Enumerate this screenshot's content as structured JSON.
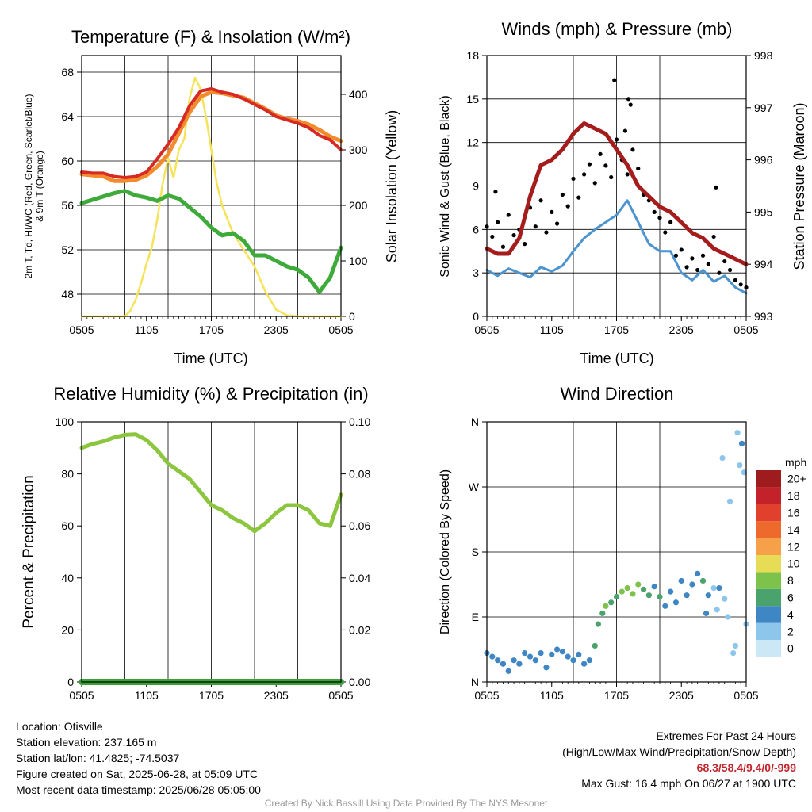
{
  "panels": {
    "temp": {
      "title": "Temperature (F) & Insolation (W/m²)",
      "xlabel": "Time (UTC)",
      "ylabel_left_line1": "2m T, Td, HI/WC (Red, Green, Scarlet/Blue)",
      "ylabel_left_line2": "& 9m T (Orange)",
      "ylabel_right": "Solar Insolation (Yellow)",
      "x_ticks": [
        "0505",
        "1105",
        "1705",
        "2305",
        "0505"
      ],
      "y_ticks_left": [
        "48",
        "52",
        "56",
        "60",
        "64",
        "68"
      ],
      "y_ticks_right": [
        "0",
        "100",
        "200",
        "300",
        "400"
      ]
    },
    "wind": {
      "title": "Winds (mph) & Pressure (mb)",
      "xlabel": "Time (UTC)",
      "ylabel_left": "Sonic Wind & Gust (Blue, Black)",
      "ylabel_right": "Station Pressure (Maroon)",
      "x_ticks": [
        "0505",
        "1105",
        "1705",
        "2305",
        "0505"
      ],
      "y_ticks_left": [
        "0",
        "3",
        "6",
        "9",
        "12",
        "15",
        "18"
      ],
      "y_ticks_right": [
        "993",
        "994",
        "995",
        "996",
        "997",
        "998"
      ]
    },
    "rh": {
      "title": "Relative Humidity (%) & Precipitation (in)",
      "ylabel_left": "Percent & Precipitation",
      "x_ticks": [
        "0505",
        "1105",
        "1705",
        "2305",
        "0505"
      ],
      "y_ticks_left": [
        "0",
        "20",
        "40",
        "60",
        "80",
        "100"
      ],
      "y_ticks_right": [
        "0.00",
        "0.02",
        "0.04",
        "0.06",
        "0.08",
        "0.10"
      ]
    },
    "dir": {
      "title": "Wind Direction",
      "ylabel_left": "Direction (Colored By Speed)",
      "x_ticks": [
        "0505",
        "1105",
        "1705",
        "2305",
        "0505"
      ],
      "y_ticks_left": [
        "N",
        "E",
        "S",
        "W",
        "N"
      ],
      "legend_title": "mph",
      "legend_labels": [
        "0",
        "2",
        "4",
        "6",
        "8",
        "10",
        "12",
        "14",
        "16",
        "18",
        "20+"
      ],
      "legend_colors": [
        "#cce8f7",
        "#8cc6ea",
        "#3f86c4",
        "#4aa36c",
        "#7dc24a",
        "#e6dc55",
        "#f6a14a",
        "#ee6a2c",
        "#e0402c",
        "#c3222a",
        "#9e1b1e"
      ]
    }
  },
  "colors": {
    "temp": "#d62a22",
    "ninem": "#f28a2e",
    "dew": "#3daa3a",
    "solar": "#f5e35a",
    "wind": "#4b94cf",
    "gust": "#000000",
    "pressure": "#a51c1c",
    "rh": "#8cc63f",
    "precip": "#3aa13a"
  },
  "chart_data": [
    {
      "type": "line",
      "panel": "temp",
      "x_unit": "hours from 0505 UTC 06/27",
      "xlim": [
        0,
        24
      ],
      "ylim_left": [
        46,
        69.5
      ],
      "ylim_right": [
        0,
        470
      ],
      "series": [
        {
          "key": "temp",
          "x": [
            0,
            1,
            2,
            3,
            4,
            5,
            6,
            7,
            8,
            9,
            10,
            11,
            12,
            13,
            14,
            15,
            16,
            17,
            18,
            19,
            20,
            21,
            22,
            23,
            24
          ],
          "y": [
            59,
            58.9,
            58.9,
            58.6,
            58.5,
            58.6,
            59,
            60.2,
            61.5,
            63,
            65,
            66.3,
            66.5,
            66.2,
            66,
            65.6,
            65.1,
            64.6,
            64,
            63.7,
            63.4,
            63,
            62.3,
            61.9,
            61
          ]
        },
        {
          "key": "ninem",
          "x": [
            0,
            1,
            2,
            3,
            4,
            5,
            6,
            7,
            8,
            9,
            10,
            11,
            12,
            13,
            14,
            15,
            16,
            17,
            18,
            19,
            20,
            21,
            22,
            23,
            24
          ],
          "y": [
            58.8,
            58.7,
            58.6,
            58.2,
            58.2,
            58.3,
            58.7,
            59.5,
            60.6,
            62.5,
            64.4,
            65.8,
            66.2,
            66.1,
            65.9,
            65.7,
            65.2,
            64.7,
            64.1,
            63.8,
            63.6,
            63.3,
            62.8,
            62.2,
            61.8
          ]
        },
        {
          "key": "dew",
          "x": [
            0,
            1,
            2,
            3,
            4,
            5,
            6,
            7,
            8,
            9,
            10,
            11,
            12,
            13,
            14,
            15,
            16,
            17,
            18,
            19,
            20,
            21,
            22,
            23,
            24
          ],
          "y": [
            56.2,
            56.5,
            56.8,
            57.1,
            57.3,
            56.9,
            56.7,
            56.4,
            56.9,
            56.6,
            55.8,
            55,
            54,
            53.3,
            53.5,
            52.8,
            51.5,
            51.5,
            51,
            50.5,
            50.2,
            49.5,
            48.2,
            49.5,
            52.2
          ]
        },
        {
          "key": "solar",
          "x": [
            0,
            1,
            2,
            3,
            4,
            4.5,
            5,
            5.5,
            6,
            6.5,
            7,
            7.5,
            8,
            8.5,
            9,
            9.5,
            10,
            10.5,
            11,
            11.5,
            12,
            12.5,
            13,
            13.5,
            14,
            15,
            16,
            17,
            18,
            19,
            20,
            24
          ],
          "y": [
            0,
            0,
            0,
            0,
            0,
            10,
            30,
            60,
            95,
            125,
            175,
            240,
            285,
            250,
            300,
            320,
            395,
            430,
            410,
            360,
            300,
            240,
            200,
            175,
            150,
            120,
            90,
            45,
            12,
            2,
            0,
            0
          ]
        }
      ]
    },
    {
      "type": "line",
      "panel": "wind",
      "x_unit": "hours from 0505 UTC 06/27",
      "xlim": [
        0,
        24
      ],
      "ylim_left": [
        0,
        18
      ],
      "ylim_right": [
        993,
        998
      ],
      "series": [
        {
          "key": "wind",
          "x": [
            0,
            1,
            2,
            3,
            4,
            5,
            6,
            7,
            8,
            9,
            10,
            11,
            12,
            13,
            14,
            15,
            16,
            17,
            18,
            19,
            20,
            21,
            22,
            23,
            24
          ],
          "y": [
            3.2,
            2.8,
            3.3,
            3,
            2.7,
            3.4,
            3.1,
            3.5,
            4.5,
            5.4,
            6,
            6.5,
            7,
            8,
            6.5,
            5,
            4.5,
            4.5,
            3,
            2.5,
            3.2,
            2.4,
            2.8,
            2,
            1.6
          ]
        },
        {
          "key": "pressure",
          "x": [
            0,
            1,
            2,
            3,
            4,
            5,
            6,
            7,
            8,
            9,
            10,
            11,
            12,
            13,
            14,
            15,
            16,
            17,
            18,
            19,
            20,
            21,
            22,
            23,
            24
          ],
          "y": [
            994.3,
            994.2,
            994.2,
            994.5,
            995.3,
            995.9,
            996,
            996.2,
            996.5,
            996.7,
            996.6,
            996.5,
            996.2,
            995.9,
            995.5,
            995.3,
            995.1,
            995,
            994.8,
            994.6,
            994.5,
            994.3,
            994.2,
            994.1,
            994
          ]
        }
      ],
      "gust_points": [
        {
          "x": 0,
          "y": 6.2
        },
        {
          "x": 0.5,
          "y": 5.5
        },
        {
          "x": 1,
          "y": 6.5
        },
        {
          "x": 1.5,
          "y": 4.8
        },
        {
          "x": 2,
          "y": 7
        },
        {
          "x": 2.5,
          "y": 5.6
        },
        {
          "x": 3,
          "y": 6
        },
        {
          "x": 3.5,
          "y": 5
        },
        {
          "x": 4,
          "y": 7.5
        },
        {
          "x": 4.5,
          "y": 6.2
        },
        {
          "x": 5,
          "y": 8
        },
        {
          "x": 5.5,
          "y": 5.8
        },
        {
          "x": 6,
          "y": 7.2
        },
        {
          "x": 6.5,
          "y": 6.4
        },
        {
          "x": 7,
          "y": 8.4
        },
        {
          "x": 7.5,
          "y": 7.6
        },
        {
          "x": 8,
          "y": 9.5
        },
        {
          "x": 8.5,
          "y": 8.2
        },
        {
          "x": 9,
          "y": 9.8
        },
        {
          "x": 9.5,
          "y": 10.5
        },
        {
          "x": 10,
          "y": 9.2
        },
        {
          "x": 10.5,
          "y": 11.2
        },
        {
          "x": 11,
          "y": 10.4
        },
        {
          "x": 11.5,
          "y": 9.6
        },
        {
          "x": 12,
          "y": 12.2
        },
        {
          "x": 12.5,
          "y": 10.8
        },
        {
          "x": 13,
          "y": 9.8
        },
        {
          "x": 13.5,
          "y": 11.5
        },
        {
          "x": 14,
          "y": 10.2
        },
        {
          "x": 14.5,
          "y": 8.4
        },
        {
          "x": 15,
          "y": 8
        },
        {
          "x": 15.5,
          "y": 7.2
        },
        {
          "x": 16,
          "y": 6.8
        },
        {
          "x": 16.5,
          "y": 5.8
        },
        {
          "x": 17,
          "y": 6.5
        },
        {
          "x": 17.5,
          "y": 4.2
        },
        {
          "x": 18,
          "y": 4.6
        },
        {
          "x": 18.5,
          "y": 3.4
        },
        {
          "x": 19,
          "y": 4
        },
        {
          "x": 19.5,
          "y": 3.2
        },
        {
          "x": 20,
          "y": 4.2
        },
        {
          "x": 20.5,
          "y": 3.6
        },
        {
          "x": 21,
          "y": 5.5
        },
        {
          "x": 21.5,
          "y": 3
        },
        {
          "x": 22,
          "y": 3.8
        },
        {
          "x": 22.5,
          "y": 3.2
        },
        {
          "x": 23,
          "y": 2.5
        },
        {
          "x": 23.5,
          "y": 2.2
        },
        {
          "x": 24,
          "y": 2
        },
        {
          "x": 0.8,
          "y": 8.6
        },
        {
          "x": 11.8,
          "y": 16.3
        },
        {
          "x": 13.1,
          "y": 15
        },
        {
          "x": 13.3,
          "y": 14.6
        },
        {
          "x": 12.8,
          "y": 12.8
        },
        {
          "x": 21.2,
          "y": 8.9
        }
      ]
    },
    {
      "type": "line",
      "panel": "rh",
      "x_unit": "hours from 0505 UTC 06/27",
      "xlim": [
        0,
        24
      ],
      "ylim_left": [
        0,
        100
      ],
      "ylim_right": [
        0,
        0.1
      ],
      "series": [
        {
          "key": "rh",
          "x": [
            0,
            1,
            2,
            3,
            4,
            5,
            6,
            7,
            8,
            9,
            10,
            11,
            12,
            13,
            14,
            15,
            16,
            17,
            18,
            19,
            20,
            21,
            22,
            23,
            24
          ],
          "y": [
            90,
            91.5,
            92.5,
            94,
            95,
            95.2,
            93,
            89,
            84,
            81,
            78,
            73,
            68,
            66,
            63,
            61,
            58,
            61,
            65,
            68,
            68,
            66,
            61,
            60,
            72
          ]
        },
        {
          "key": "precip",
          "x": [
            0,
            24
          ],
          "y": [
            0,
            0
          ]
        }
      ]
    },
    {
      "type": "scatter",
      "panel": "dir",
      "x_unit": "hours from 0505 UTC 06/27",
      "xlim": [
        0,
        24
      ],
      "ylim": [
        0,
        360
      ],
      "points": [
        {
          "x": 0,
          "y": 40,
          "s": 3
        },
        {
          "x": 0.5,
          "y": 35,
          "s": 2
        },
        {
          "x": 1,
          "y": 30,
          "s": 3
        },
        {
          "x": 1.5,
          "y": 25,
          "s": 2
        },
        {
          "x": 2,
          "y": 15,
          "s": 3
        },
        {
          "x": 2.5,
          "y": 30,
          "s": 2
        },
        {
          "x": 3,
          "y": 25,
          "s": 3
        },
        {
          "x": 3.5,
          "y": 40,
          "s": 2
        },
        {
          "x": 4,
          "y": 35,
          "s": 3
        },
        {
          "x": 4.5,
          "y": 30,
          "s": 2
        },
        {
          "x": 5,
          "y": 40,
          "s": 3
        },
        {
          "x": 5.5,
          "y": 20,
          "s": 3
        },
        {
          "x": 6,
          "y": 38,
          "s": 2
        },
        {
          "x": 6.5,
          "y": 45,
          "s": 3
        },
        {
          "x": 7,
          "y": 42,
          "s": 3
        },
        {
          "x": 7.5,
          "y": 35,
          "s": 2
        },
        {
          "x": 8,
          "y": 30,
          "s": 3
        },
        {
          "x": 8.5,
          "y": 38,
          "s": 2
        },
        {
          "x": 9,
          "y": 25,
          "s": 3
        },
        {
          "x": 9.5,
          "y": 30,
          "s": 2
        },
        {
          "x": 10,
          "y": 50,
          "s": 4
        },
        {
          "x": 10.3,
          "y": 80,
          "s": 5
        },
        {
          "x": 10.7,
          "y": 95,
          "s": 4
        },
        {
          "x": 11,
          "y": 105,
          "s": 6
        },
        {
          "x": 11.5,
          "y": 110,
          "s": 5
        },
        {
          "x": 12,
          "y": 118,
          "s": 4
        },
        {
          "x": 12.5,
          "y": 125,
          "s": 6
        },
        {
          "x": 13,
          "y": 130,
          "s": 7
        },
        {
          "x": 13.5,
          "y": 122,
          "s": 6
        },
        {
          "x": 14,
          "y": 135,
          "s": 7
        },
        {
          "x": 14.5,
          "y": 128,
          "s": 4
        },
        {
          "x": 15,
          "y": 120,
          "s": 4
        },
        {
          "x": 15.5,
          "y": 132,
          "s": 3
        },
        {
          "x": 16,
          "y": 118,
          "s": 4
        },
        {
          "x": 16.5,
          "y": 105,
          "s": 3
        },
        {
          "x": 17,
          "y": 125,
          "s": 2
        },
        {
          "x": 17.5,
          "y": 110,
          "s": 3
        },
        {
          "x": 18,
          "y": 140,
          "s": 2
        },
        {
          "x": 18.5,
          "y": 120,
          "s": 3
        },
        {
          "x": 19,
          "y": 135,
          "s": 2
        },
        {
          "x": 19.5,
          "y": 150,
          "s": 3
        },
        {
          "x": 20,
          "y": 140,
          "s": 4
        },
        {
          "x": 20.3,
          "y": 95,
          "s": 2
        },
        {
          "x": 20.5,
          "y": 120,
          "s": 2
        },
        {
          "x": 21,
          "y": 130,
          "s": 1
        },
        {
          "x": 21.3,
          "y": 100,
          "s": 1
        },
        {
          "x": 21.5,
          "y": 130,
          "s": 2
        },
        {
          "x": 21.8,
          "y": 310,
          "s": 1
        },
        {
          "x": 22,
          "y": 115,
          "s": 1
        },
        {
          "x": 22.3,
          "y": 90,
          "s": 1
        },
        {
          "x": 22.5,
          "y": 250,
          "s": 1
        },
        {
          "x": 22.8,
          "y": 40,
          "s": 1
        },
        {
          "x": 23,
          "y": 50,
          "s": 1
        },
        {
          "x": 23.2,
          "y": 345,
          "s": 1
        },
        {
          "x": 23.4,
          "y": 300,
          "s": 1
        },
        {
          "x": 23.6,
          "y": 330,
          "s": 2
        },
        {
          "x": 23.8,
          "y": 290,
          "s": 1
        },
        {
          "x": 24,
          "y": 80,
          "s": 1
        }
      ]
    }
  ],
  "info_left": [
    "Location: Otisville",
    "Station elevation: 237.165 m",
    "Station lat/lon: 41.4825; -74.5037",
    "Figure created on Sat, 2025-06-28, at 05:09 UTC",
    "Most recent data timestamp: 2025/06/28 05:05:00"
  ],
  "info_right": {
    "line1": "Extremes For Past 24 Hours",
    "line2": "(High/Low/Max Wind/Precipitation/Snow Depth)",
    "extremes": "68.3/58.4/9.4/0/-999",
    "max_gust": "Max Gust: 16.4 mph On 06/27 at 1900 UTC"
  },
  "credit": "Created By Nick Bassill Using Data Provided By The NYS Mesonet"
}
